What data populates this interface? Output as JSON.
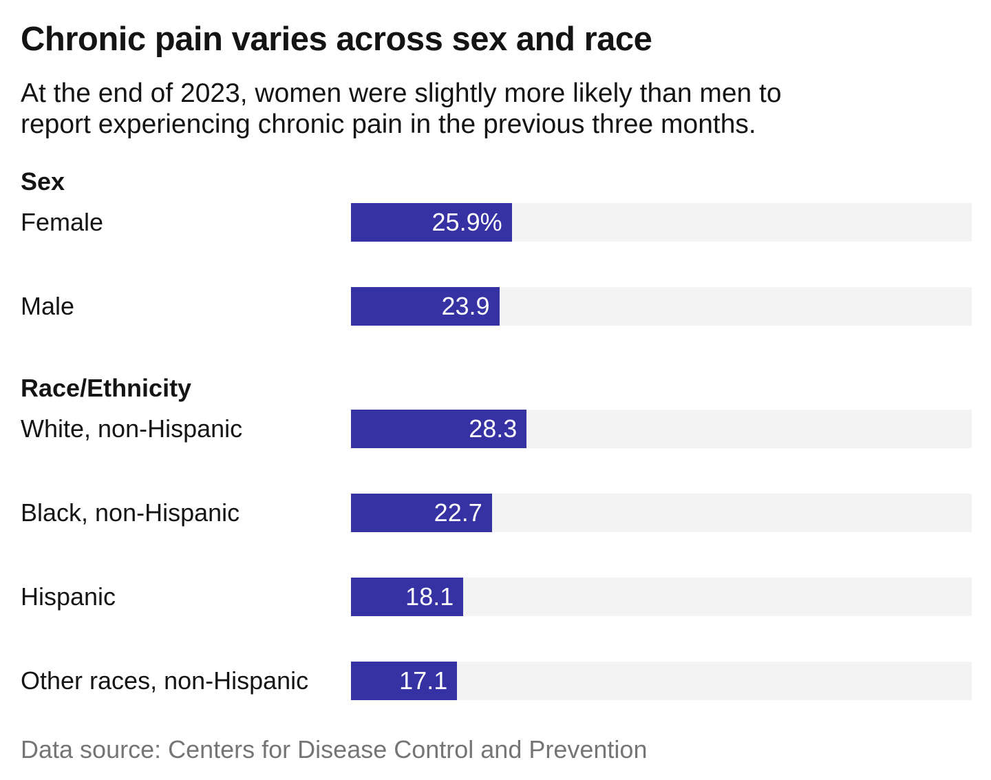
{
  "chart_data": {
    "type": "bar",
    "orientation": "horizontal",
    "title": "Chronic pain varies across sex and race",
    "subtitle_lines": [
      "At the end of 2023, women were slightly more likely than men to",
      "report experiencing chronic pain in the previous three months.",
      ""
    ],
    "value_unit": "percent",
    "xlim": [
      0,
      100
    ],
    "grid": false,
    "legend": "none",
    "groups": [
      {
        "label": "Sex",
        "rows": [
          {
            "label": "Female",
            "value": 25.9,
            "value_label": "25.9%"
          },
          {
            "label": "Male",
            "value": 23.9,
            "value_label": "23.9"
          }
        ]
      },
      {
        "label": "Race/Ethnicity",
        "rows": [
          {
            "label": "White, non-Hispanic",
            "value": 28.3,
            "value_label": "28.3"
          },
          {
            "label": "Black, non-Hispanic",
            "value": 22.7,
            "value_label": "22.7"
          },
          {
            "label": "Hispanic",
            "value": 18.1,
            "value_label": "18.1"
          },
          {
            "label": "Other races, non-Hispanic",
            "value": 17.1,
            "value_label": "17.1"
          }
        ]
      }
    ],
    "source": "Data source: Centers for Disease Control and Prevention",
    "colors": {
      "bar_fill": "#3632a3",
      "bar_track": "#f3f3f3",
      "value_text": "#ffffff",
      "heading_text": "#141414",
      "source_text": "#757575"
    }
  }
}
